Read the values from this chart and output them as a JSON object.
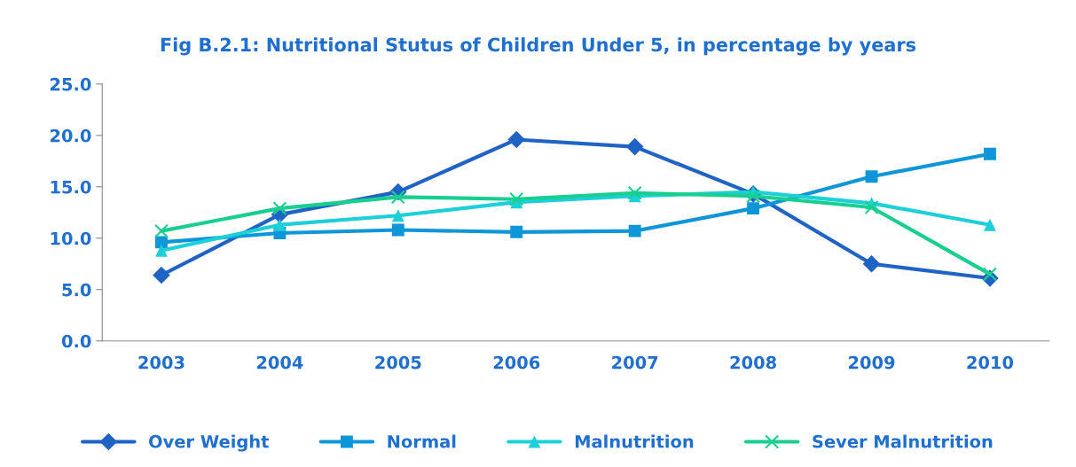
{
  "chart_data": {
    "type": "line",
    "title": "Fig B.2.1: Nutritional Stutus of Children Under 5, in percentage by years",
    "categories": [
      "2003",
      "2004",
      "2005",
      "2006",
      "2007",
      "2008",
      "2009",
      "2010"
    ],
    "series": [
      {
        "name": "Over Weight",
        "color": "#1f63c4",
        "marker": "diamond",
        "values": [
          6.4,
          12.3,
          14.5,
          19.6,
          18.9,
          14.3,
          7.5,
          6.1
        ]
      },
      {
        "name": "Normal",
        "color": "#0e96d8",
        "marker": "square",
        "values": [
          9.6,
          10.5,
          10.8,
          10.6,
          10.7,
          12.9,
          16.0,
          18.2
        ]
      },
      {
        "name": "Malnutrition",
        "color": "#1ccfd8",
        "marker": "triangle",
        "values": [
          8.8,
          11.3,
          12.2,
          13.5,
          14.1,
          14.5,
          13.4,
          11.3
        ]
      },
      {
        "name": "Sever Malnutrition",
        "color": "#18cf8f",
        "marker": "cross",
        "values": [
          10.7,
          12.9,
          14.0,
          13.8,
          14.4,
          14.1,
          13.0,
          6.5
        ]
      }
    ],
    "ylim": [
      0,
      25
    ],
    "yticks": [
      {
        "value": 0,
        "label": "0.0"
      },
      {
        "value": 5,
        "label": "5.0"
      },
      {
        "value": 10,
        "label": "10.0"
      },
      {
        "value": 15,
        "label": "15.0"
      },
      {
        "value": 20,
        "label": "20.0"
      },
      {
        "value": 25,
        "label": "25.0"
      }
    ],
    "grid": false,
    "legend": "bottom"
  }
}
